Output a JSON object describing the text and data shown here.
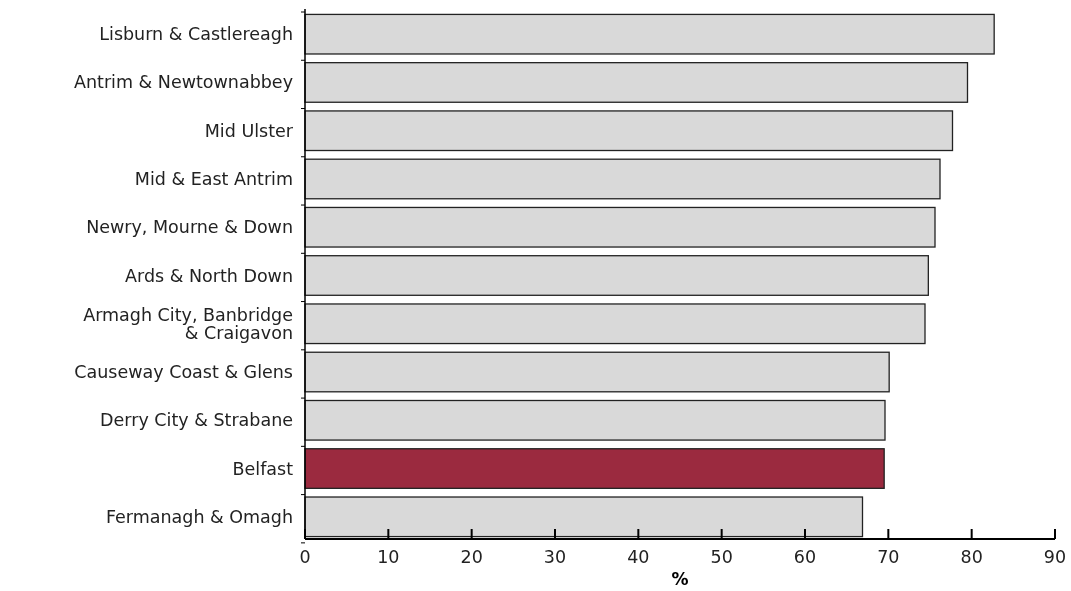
{
  "chart_data": {
    "type": "bar",
    "orientation": "horizontal",
    "xlabel": "%",
    "categories": [
      "Lisburn & Castlereagh",
      "Antrim & Newtownabbey",
      "Mid Ulster",
      "Mid & East Antrim",
      "Newry, Mourne & Down",
      "Ards & North Down",
      "Armagh City, Banbridge\n& Craigavon",
      "Causeway Coast & Glens",
      "Derry City & Strabane",
      "Belfast",
      "Fermanagh & Omagh"
    ],
    "values": [
      82.7,
      79.5,
      77.7,
      76.2,
      75.6,
      74.8,
      74.4,
      70.1,
      69.6,
      69.5,
      66.9
    ],
    "colors": [
      "#d9d9d9",
      "#d9d9d9",
      "#d9d9d9",
      "#d9d9d9",
      "#d9d9d9",
      "#d9d9d9",
      "#d9d9d9",
      "#d9d9d9",
      "#d9d9d9",
      "#9b2a3f",
      "#d9d9d9"
    ],
    "xlim": [
      0,
      90
    ],
    "xticks": [
      0,
      10,
      20,
      30,
      40,
      50,
      60,
      70,
      80,
      90
    ],
    "grid": false
  }
}
